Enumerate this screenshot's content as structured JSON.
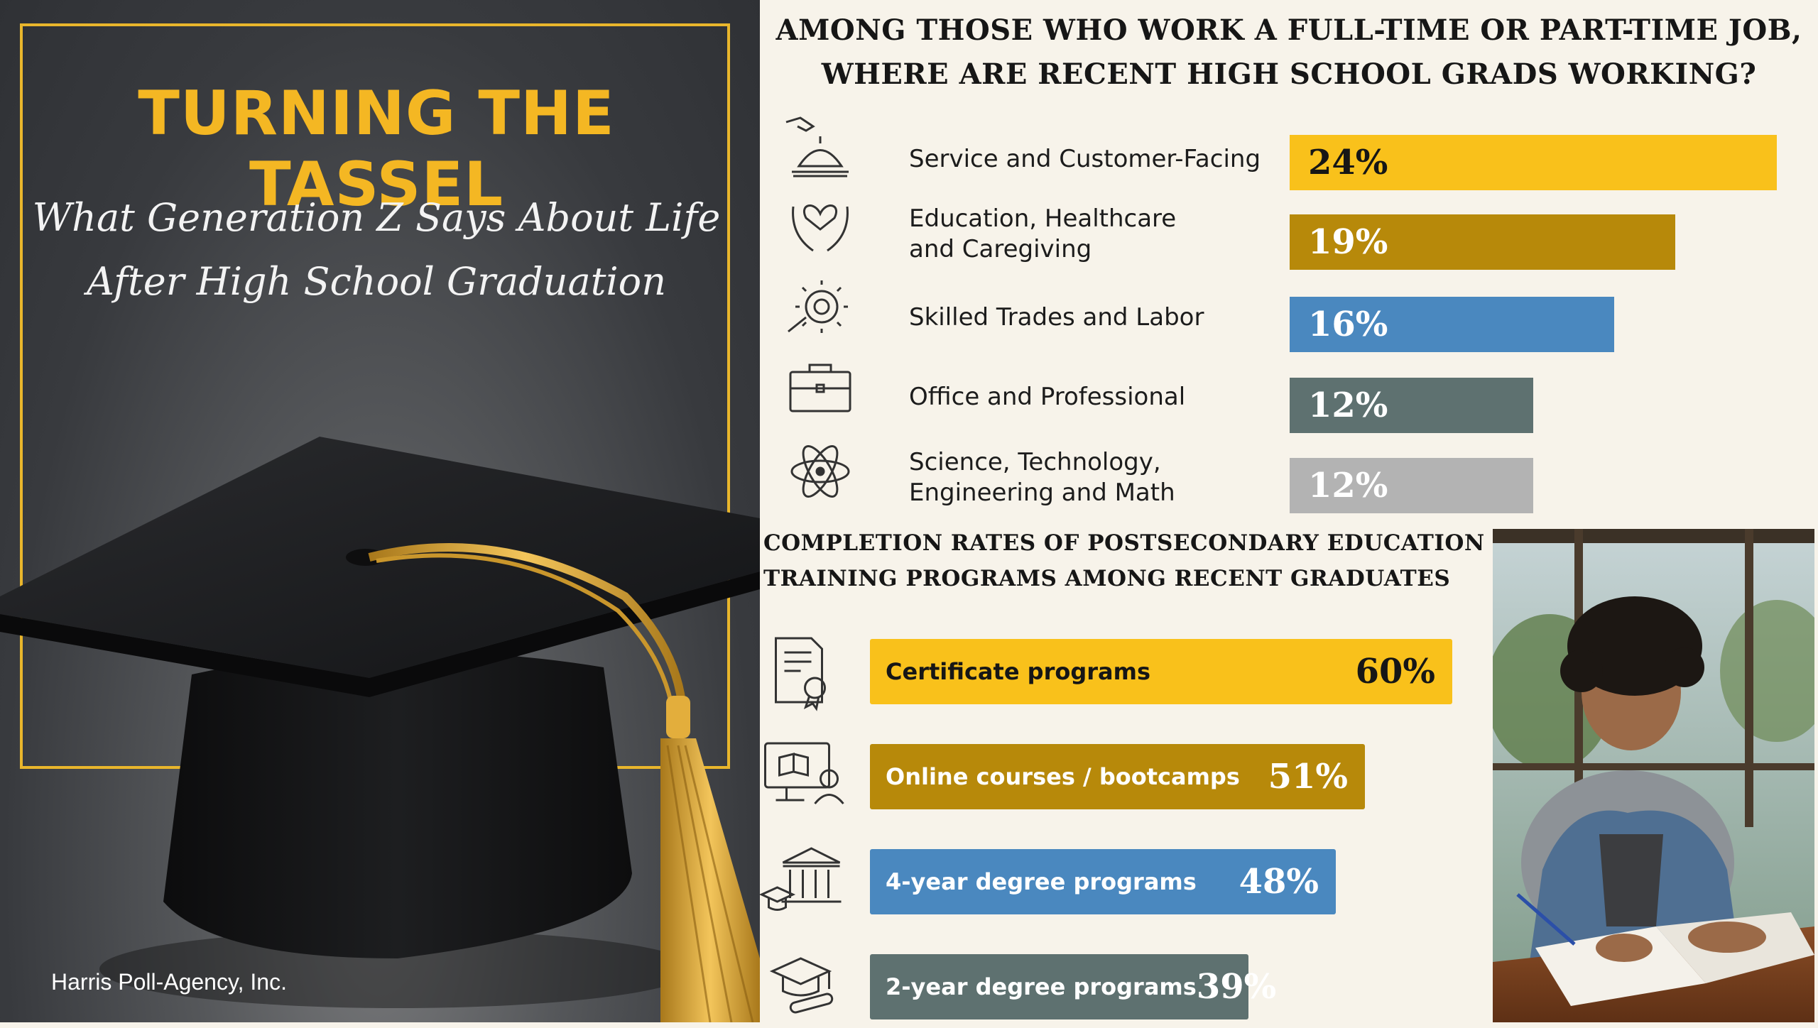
{
  "left": {
    "title": "TURNING THE TASSEL",
    "subtitle_line1": "What Generation Z Says About Life",
    "subtitle_line2": "After High School Graduation",
    "credit": "Harris Poll-Agency, Inc."
  },
  "colors": {
    "gold": "#f9c11b",
    "dark_gold": "#b7890a",
    "blue": "#4a88bf",
    "slate": "#5e7170",
    "gray": "#b3b3b3"
  },
  "chart_data": [
    {
      "type": "bar",
      "orientation": "horizontal",
      "title_line1": "AMONG THOSE WHO WORK A FULL-TIME OR PART-TIME JOB,",
      "title_line2": "WHERE ARE RECENT HIGH SCHOOL GRADS WORKING?",
      "categories": [
        {
          "line1": "Service and Customer-Facing",
          "line2": "",
          "icon": "service-bell-icon"
        },
        {
          "line1": "Education, Healthcare",
          "line2": "and Caregiving",
          "icon": "heart-hands-icon"
        },
        {
          "line1": "Skilled Trades and Labor",
          "line2": "",
          "icon": "gear-wrench-icon"
        },
        {
          "line1": "Office and Professional",
          "line2": "",
          "icon": "briefcase-icon"
        },
        {
          "line1": "Science, Technology,",
          "line2": "Engineering and Math",
          "icon": "atom-icon"
        }
      ],
      "values": [
        24,
        19,
        16,
        12,
        12
      ],
      "labels": [
        "24%",
        "19%",
        "16%",
        "12%",
        "12%"
      ],
      "bar_colors": [
        "#f9c11b",
        "#b7890a",
        "#4a88bf",
        "#5e7170",
        "#b3b3b3"
      ],
      "label_colors": [
        "#161616",
        "#ffffff",
        "#ffffff",
        "#ffffff",
        "#ffffff"
      ],
      "xlim": [
        0,
        24
      ]
    },
    {
      "type": "bar",
      "orientation": "horizontal",
      "title_line1": "COMPLETION RATES OF POSTSECONDARY EDUCATION /",
      "title_line2": "TRAINING PROGRAMS AMONG RECENT GRADUATES",
      "categories": [
        {
          "label": "Certificate programs",
          "icon": "certificate-icon"
        },
        {
          "label": "Online courses / bootcamps",
          "icon": "online-course-icon"
        },
        {
          "label": "4-year degree programs",
          "icon": "university-icon"
        },
        {
          "label": "2-year degree programs",
          "icon": "graduation-cap-diploma-icon"
        }
      ],
      "values": [
        60,
        51,
        48,
        39
      ],
      "labels": [
        "60%",
        "51%",
        "48%",
        "39%"
      ],
      "bar_colors": [
        "#f9c11b",
        "#b7890a",
        "#4a88bf",
        "#5e7170"
      ],
      "text_colors": [
        "#161616",
        "#ffffff",
        "#ffffff",
        "#ffffff"
      ],
      "xlim": [
        0,
        60
      ]
    }
  ]
}
